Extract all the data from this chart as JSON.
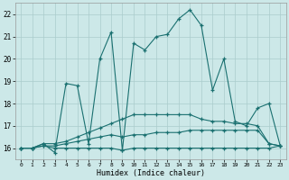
{
  "xlabel": "Humidex (Indice chaleur)",
  "background_color": "#cce8e8",
  "grid_color": "#aacccc",
  "line_color": "#1a7070",
  "xlim": [
    -0.5,
    23.5
  ],
  "ylim": [
    15.5,
    22.5
  ],
  "yticks": [
    16,
    17,
    18,
    19,
    20,
    21,
    22
  ],
  "xticks": [
    0,
    1,
    2,
    3,
    4,
    5,
    6,
    7,
    8,
    9,
    10,
    11,
    12,
    13,
    14,
    15,
    16,
    17,
    18,
    19,
    20,
    21,
    22,
    23
  ],
  "series": [
    {
      "x": [
        0,
        1,
        2,
        3,
        4,
        5,
        6,
        7,
        8,
        9,
        10,
        11,
        12,
        13,
        14,
        15,
        16,
        17,
        18,
        19,
        20,
        21,
        22,
        23
      ],
      "y": [
        16.0,
        16.0,
        16.2,
        15.8,
        18.9,
        18.8,
        16.2,
        20.0,
        21.2,
        15.9,
        20.7,
        20.4,
        21.0,
        21.1,
        21.8,
        22.2,
        21.5,
        18.6,
        20.0,
        17.2,
        17.0,
        17.8,
        18.0,
        16.1
      ]
    },
    {
      "x": [
        0,
        1,
        2,
        3,
        4,
        5,
        6,
        7,
        8,
        9,
        10,
        11,
        12,
        13,
        14,
        15,
        16,
        17,
        18,
        19,
        20,
        21,
        22,
        23
      ],
      "y": [
        16.0,
        16.0,
        16.2,
        16.2,
        16.3,
        16.5,
        16.7,
        16.9,
        17.1,
        17.3,
        17.5,
        17.5,
        17.5,
        17.5,
        17.5,
        17.5,
        17.3,
        17.2,
        17.2,
        17.1,
        17.1,
        17.0,
        16.2,
        16.1
      ]
    },
    {
      "x": [
        0,
        1,
        2,
        3,
        4,
        5,
        6,
        7,
        8,
        9,
        10,
        11,
        12,
        13,
        14,
        15,
        16,
        17,
        18,
        19,
        20,
        21,
        22,
        23
      ],
      "y": [
        16.0,
        16.0,
        16.1,
        16.0,
        16.0,
        16.0,
        16.0,
        16.0,
        16.0,
        15.9,
        16.0,
        16.0,
        16.0,
        16.0,
        16.0,
        16.0,
        16.0,
        16.0,
        16.0,
        16.0,
        16.0,
        16.0,
        16.0,
        16.1
      ]
    },
    {
      "x": [
        0,
        1,
        2,
        3,
        4,
        5,
        6,
        7,
        8,
        9,
        10,
        11,
        12,
        13,
        14,
        15,
        16,
        17,
        18,
        19,
        20,
        21,
        22,
        23
      ],
      "y": [
        16.0,
        16.0,
        16.1,
        16.1,
        16.2,
        16.3,
        16.4,
        16.5,
        16.6,
        16.5,
        16.6,
        16.6,
        16.7,
        16.7,
        16.7,
        16.8,
        16.8,
        16.8,
        16.8,
        16.8,
        16.8,
        16.8,
        16.2,
        16.1
      ]
    }
  ]
}
